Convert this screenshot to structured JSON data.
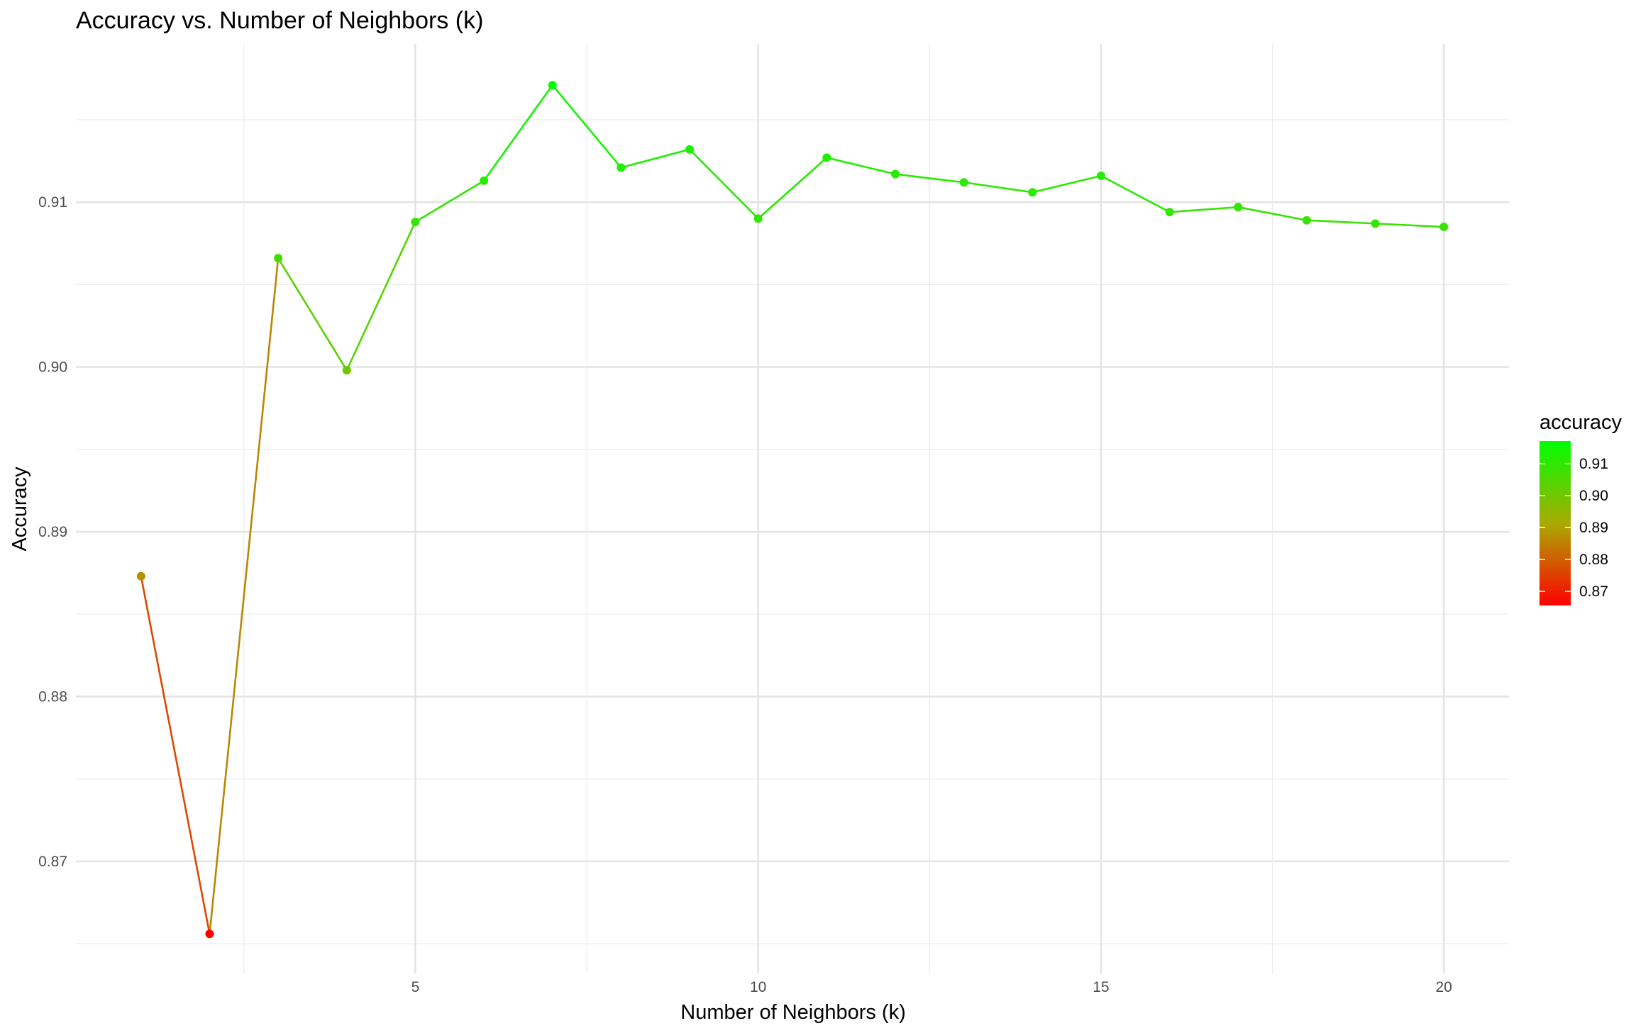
{
  "chart_data": {
    "type": "line",
    "title": "Accuracy vs. Number of Neighbors (k)",
    "xlabel": "Number of Neighbors (k)",
    "ylabel": "Accuracy",
    "x": [
      1,
      2,
      3,
      4,
      5,
      6,
      7,
      8,
      9,
      10,
      11,
      12,
      13,
      14,
      15,
      16,
      17,
      18,
      19,
      20
    ],
    "values": [
      0.8873,
      0.8656,
      0.9066,
      0.8998,
      0.9088,
      0.9113,
      0.9171,
      0.9121,
      0.9132,
      0.909,
      0.9127,
      0.9117,
      0.9112,
      0.9106,
      0.9116,
      0.9094,
      0.9097,
      0.9089,
      0.9087,
      0.9085
    ],
    "xlim": [
      0.05,
      20.95
    ],
    "ylim": [
      0.8632,
      0.9196
    ],
    "x_ticks": [
      5,
      10,
      15,
      20
    ],
    "x_tick_labels": [
      "5",
      "10",
      "15",
      "20"
    ],
    "y_ticks": [
      0.87,
      0.88,
      0.89,
      0.9,
      0.91
    ],
    "y_tick_labels": [
      "0.87",
      "0.88",
      "0.89",
      "0.90",
      "0.91"
    ],
    "grid": true,
    "legend": {
      "title": "accuracy",
      "placement": "right",
      "type": "colorbar",
      "range": [
        0.8656,
        0.9171
      ],
      "ticks": [
        0.87,
        0.88,
        0.89,
        0.9,
        0.91
      ],
      "tick_labels": [
        "0.87",
        "0.88",
        "0.89",
        "0.90",
        "0.91"
      ],
      "low_color": "#ff0000",
      "high_color": "#00ff00"
    }
  }
}
